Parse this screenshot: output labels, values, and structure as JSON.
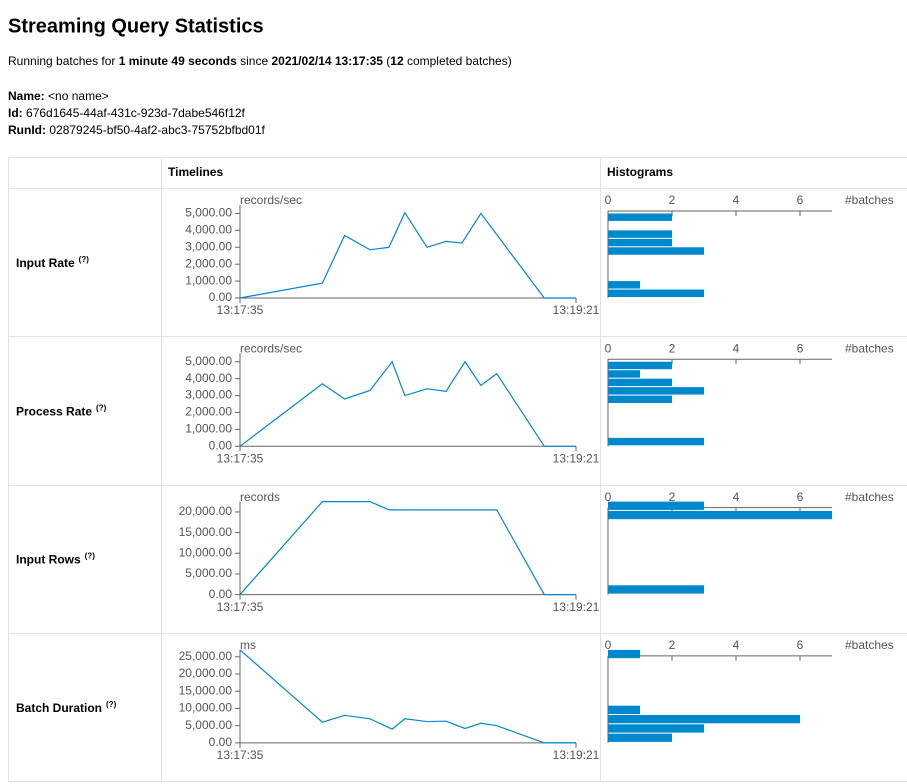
{
  "header": {
    "title": "Streaming Query Statistics",
    "summary": [
      "Running batches for ",
      "1 minute 49 seconds",
      " since ",
      "2021/02/14 13:17:35",
      " (",
      "12",
      " completed batches)"
    ],
    "info": [
      {
        "label": "Name:",
        "value": "<no name>"
      },
      {
        "label": "Id:",
        "value": "676d1645-44af-431c-923d-7dabe546f12f"
      },
      {
        "label": "RunId:",
        "value": "02879245-bf50-4af2-abc3-75752bfbd01f"
      }
    ]
  },
  "table": {
    "headers": [
      "Timelines",
      "Histograms"
    ],
    "rows": [
      {
        "label": "Input Rate",
        "help": "(?)"
      },
      {
        "label": "Process Rate",
        "help": "(?)"
      },
      {
        "label": "Input Rows",
        "help": "(?)"
      },
      {
        "label": "Batch Duration",
        "help": "(?)"
      }
    ]
  },
  "chart_data": [
    {
      "type": "line",
      "y_label": "records/sec",
      "color": "#0088cc",
      "x": [
        "13:17:35",
        "13:18:01",
        "13:18:08",
        "13:18:16",
        "13:18:22",
        "13:18:27",
        "13:18:34",
        "13:18:40",
        "13:18:45",
        "13:18:51",
        "13:19:11",
        "13:19:21"
      ],
      "values": [
        0,
        880,
        3700,
        2850,
        3000,
        5050,
        3000,
        3350,
        3250,
        5000,
        0,
        0
      ],
      "xlim": [
        "13:17:35",
        "13:19:21"
      ],
      "xticks": [
        "13:17:35",
        "13:19:21"
      ],
      "ylim": [
        0,
        5500
      ],
      "yticks": [
        {
          "value": 0,
          "label": "0.00"
        },
        {
          "value": 1000,
          "label": "1,000.00"
        },
        {
          "value": 2000,
          "label": "2,000.00"
        },
        {
          "value": 3000,
          "label": "3,000.00"
        },
        {
          "value": 4000,
          "label": "4,000.00"
        },
        {
          "value": 5000,
          "label": "5,000.00"
        }
      ]
    },
    {
      "type": "histogram",
      "x_label": "#batches",
      "color": "#0088cc",
      "bins": [
        0,
        500,
        1000,
        1500,
        2000,
        2500,
        3000,
        3500,
        4000,
        4500,
        5000
      ],
      "counts": [
        3,
        1,
        0,
        0,
        0,
        3,
        2,
        2,
        0,
        2
      ],
      "xlim": [
        0,
        7
      ],
      "xticks": [
        0,
        2,
        4,
        6
      ],
      "ylim": [
        0,
        5500
      ]
    },
    {
      "type": "line",
      "y_label": "records/sec",
      "color": "#0088cc",
      "x": [
        "13:17:35",
        "13:18:01",
        "13:18:08",
        "13:18:16",
        "13:18:23",
        "13:18:27",
        "13:18:34",
        "13:18:40",
        "13:18:46",
        "13:18:51",
        "13:18:56",
        "13:19:11",
        "13:19:21"
      ],
      "values": [
        0,
        3700,
        2800,
        3300,
        5000,
        3000,
        3400,
        3250,
        5000,
        3600,
        4300,
        0,
        0
      ],
      "xlim": [
        "13:17:35",
        "13:19:21"
      ],
      "xticks": [
        "13:17:35",
        "13:19:21"
      ],
      "ylim": [
        0,
        5500
      ],
      "yticks": [
        {
          "value": 0,
          "label": "0.00"
        },
        {
          "value": 1000,
          "label": "1,000.00"
        },
        {
          "value": 2000,
          "label": "2,000.00"
        },
        {
          "value": 3000,
          "label": "3,000.00"
        },
        {
          "value": 4000,
          "label": "4,000.00"
        },
        {
          "value": 5000,
          "label": "5,000.00"
        }
      ]
    },
    {
      "type": "histogram",
      "x_label": "#batches",
      "color": "#0088cc",
      "bins": [
        0,
        500,
        1000,
        1500,
        2000,
        2500,
        3000,
        3500,
        4000,
        4500,
        5000
      ],
      "counts": [
        3,
        0,
        0,
        0,
        0,
        2,
        3,
        2,
        1,
        2
      ],
      "xlim": [
        0,
        7
      ],
      "xticks": [
        0,
        2,
        4,
        6
      ],
      "ylim": [
        0,
        5500
      ]
    },
    {
      "type": "line",
      "y_label": "records",
      "color": "#0088cc",
      "x": [
        "13:17:35",
        "13:18:01",
        "13:18:16",
        "13:18:22",
        "13:18:56",
        "13:19:11",
        "13:19:21"
      ],
      "values": [
        0,
        22500,
        22500,
        20500,
        20500,
        0,
        0
      ],
      "xlim": [
        "13:17:35",
        "13:19:21"
      ],
      "xticks": [
        "13:17:35",
        "13:19:21"
      ],
      "ylim": [
        0,
        22500
      ],
      "yticks": [
        {
          "value": 0,
          "label": "0.00"
        },
        {
          "value": 5000,
          "label": "5,000.00"
        },
        {
          "value": 10000,
          "label": "10,000.00"
        },
        {
          "value": 15000,
          "label": "15,000.00"
        },
        {
          "value": 20000,
          "label": "20,000.00"
        }
      ]
    },
    {
      "type": "histogram",
      "x_label": "#batches",
      "color": "#0088cc",
      "bins": [
        0,
        2250,
        4500,
        6750,
        9000,
        11250,
        13500,
        15750,
        18000,
        20250,
        22500
      ],
      "counts": [
        3,
        0,
        0,
        0,
        0,
        0,
        0,
        0,
        7,
        3
      ],
      "xlim": [
        0,
        7
      ],
      "xticks": [
        0,
        2,
        4,
        6
      ],
      "ylim": [
        0,
        22500
      ]
    },
    {
      "type": "line",
      "y_label": "ms",
      "color": "#0088cc",
      "x": [
        "13:17:35",
        "13:18:01",
        "13:18:08",
        "13:18:16",
        "13:18:23",
        "13:18:27",
        "13:18:34",
        "13:18:40",
        "13:18:46",
        "13:18:51",
        "13:18:56",
        "13:19:11",
        "13:19:21"
      ],
      "values": [
        27000,
        6000,
        8000,
        7000,
        4000,
        7000,
        6200,
        6300,
        4200,
        5700,
        5000,
        0,
        0
      ],
      "xlim": [
        "13:17:35",
        "13:19:21"
      ],
      "xticks": [
        "13:17:35",
        "13:19:21"
      ],
      "ylim": [
        0,
        27000
      ],
      "yticks": [
        {
          "value": 0,
          "label": "0.00"
        },
        {
          "value": 5000,
          "label": "5,000.00"
        },
        {
          "value": 10000,
          "label": "10,000.00"
        },
        {
          "value": 15000,
          "label": "15,000.00"
        },
        {
          "value": 20000,
          "label": "20,000.00"
        },
        {
          "value": 25000,
          "label": "25,000.00"
        }
      ]
    },
    {
      "type": "histogram",
      "x_label": "#batches",
      "color": "#0088cc",
      "bins": [
        0,
        2700,
        5400,
        8100,
        10800,
        13500,
        16200,
        18900,
        21600,
        24300,
        27000
      ],
      "counts": [
        2,
        3,
        6,
        1,
        0,
        0,
        0,
        0,
        0,
        1
      ],
      "xlim": [
        0,
        7
      ],
      "xticks": [
        0,
        2,
        4,
        6
      ],
      "ylim": [
        0,
        27000
      ]
    }
  ]
}
